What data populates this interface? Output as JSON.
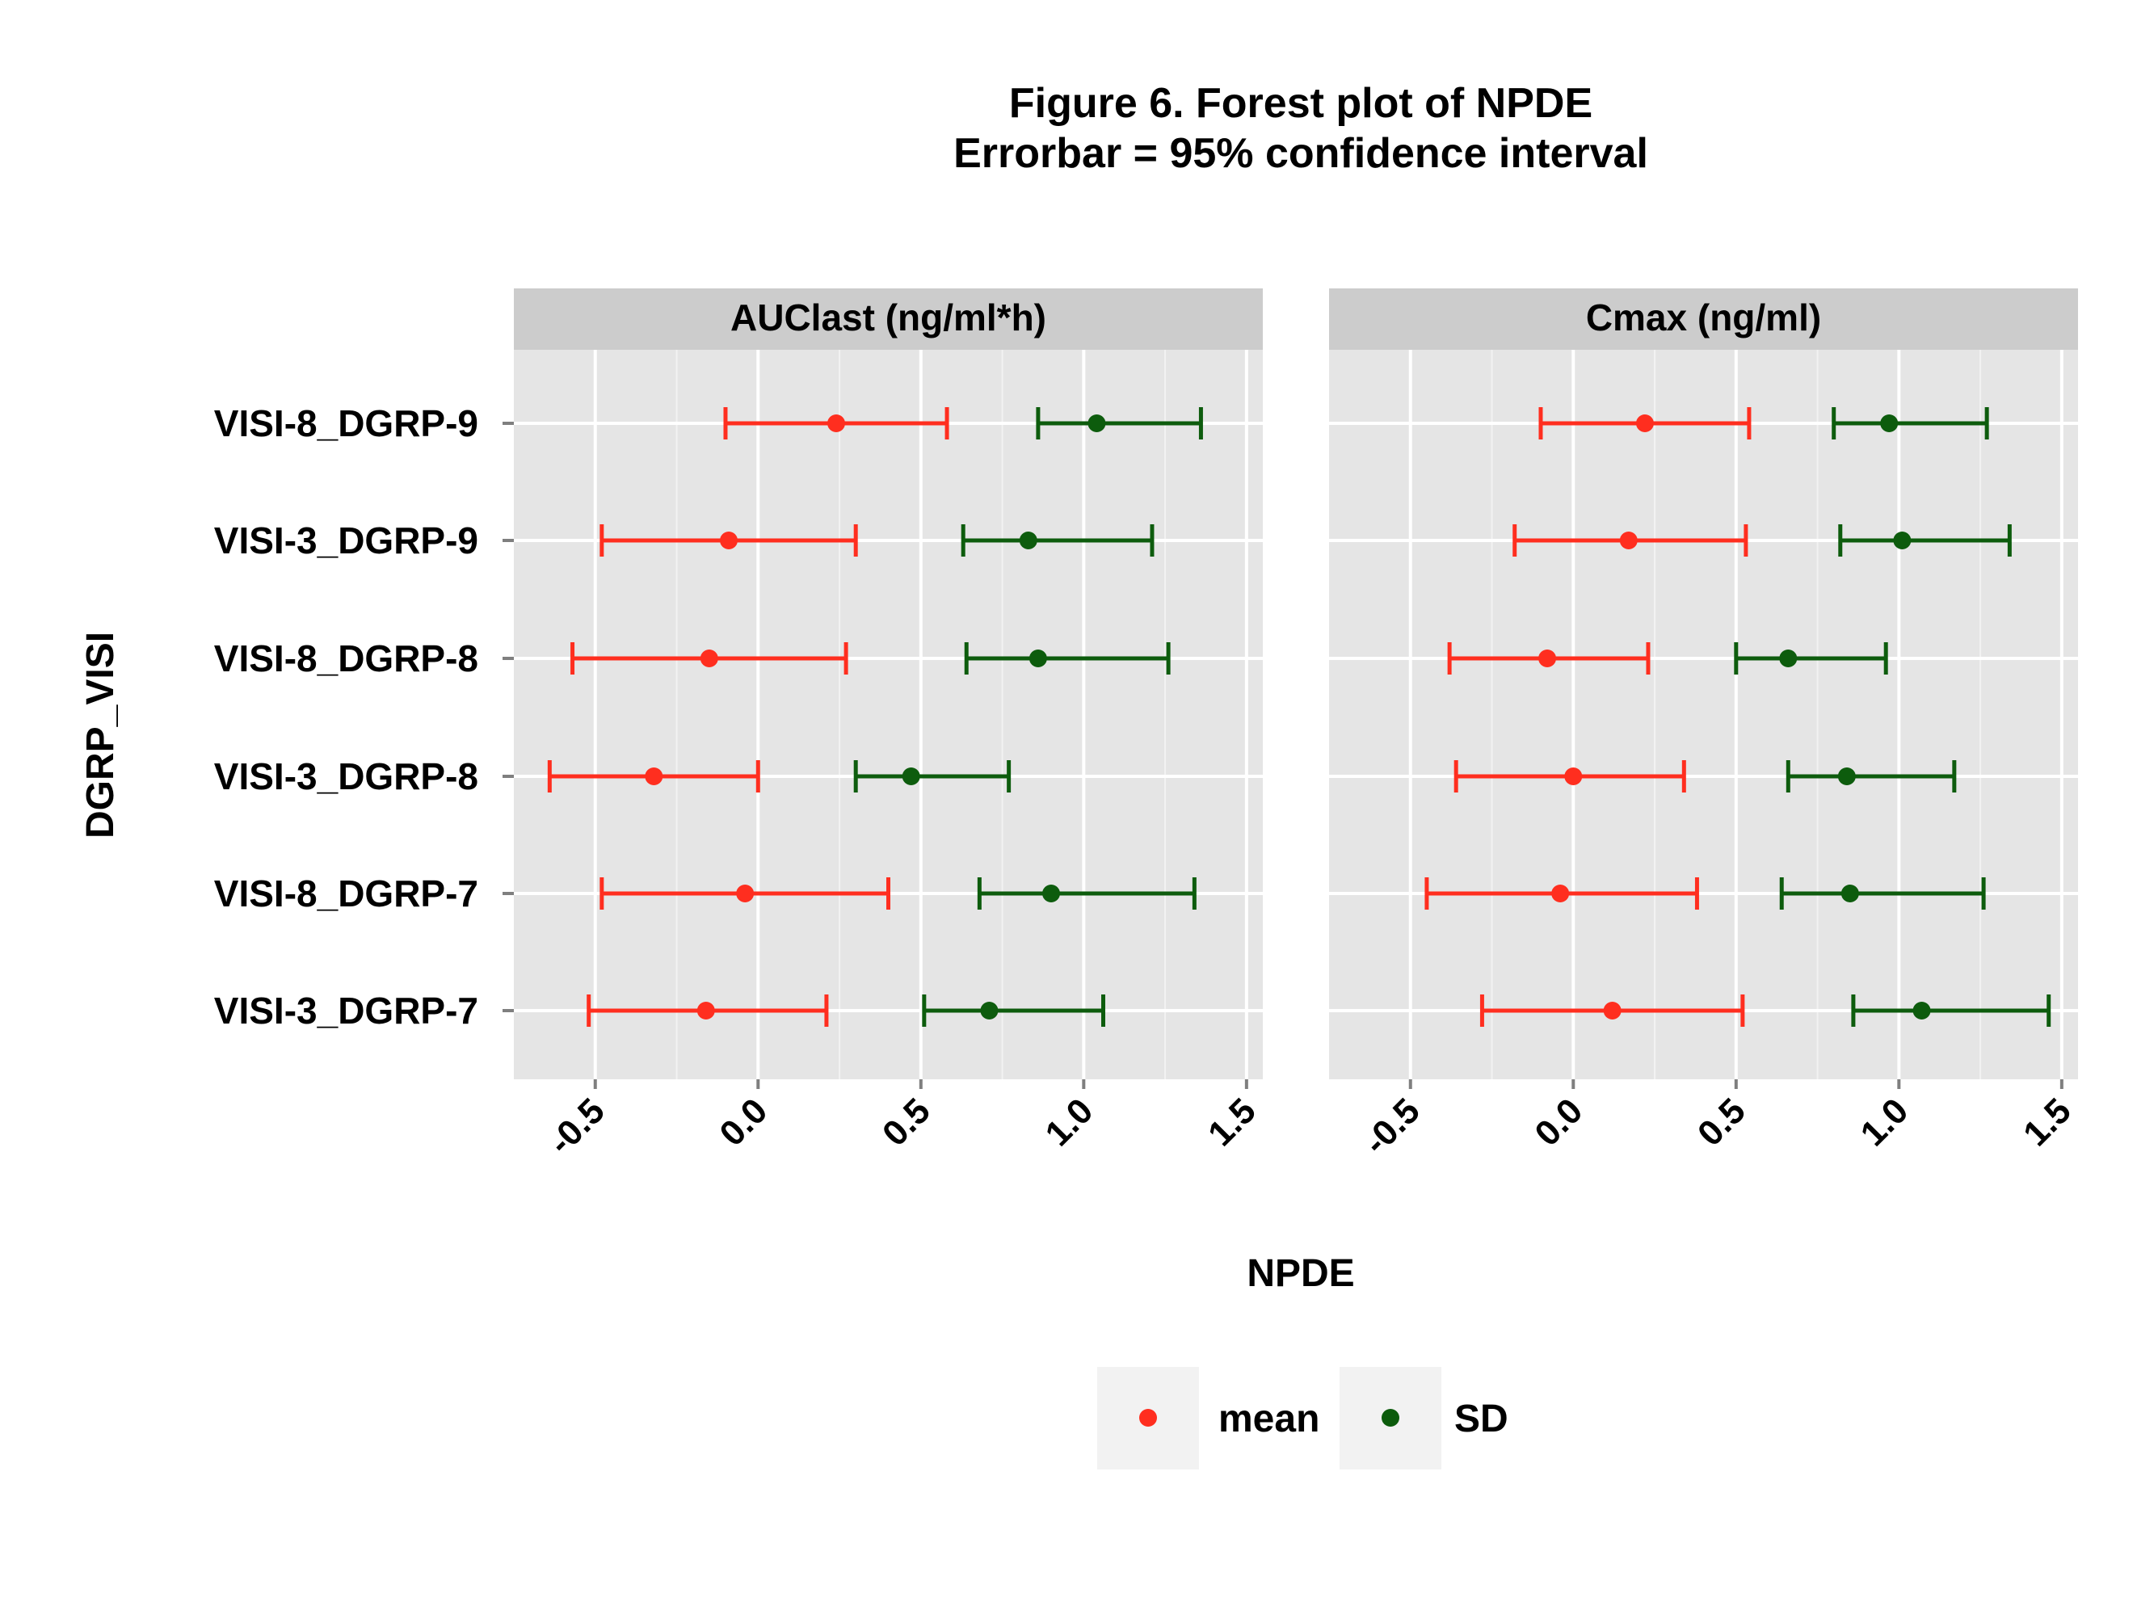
{
  "chart_data": {
    "type": "forest",
    "title": "Figure 6. Forest plot of NPDE",
    "subtitle": "Errorbar = 95% confidence interval",
    "xlabel": "NPDE",
    "ylabel": "DGRP_VISI",
    "xlim": [
      -0.75,
      1.55
    ],
    "xticks": [
      -0.5,
      0.0,
      0.5,
      1.0,
      1.5
    ],
    "xtick_labels": [
      "-0.5",
      "0.0",
      "0.5",
      "1.0",
      "1.5"
    ],
    "grid": true,
    "legend_position": "bottom",
    "categories": [
      "VISI-8_DGRP-9",
      "VISI-3_DGRP-9",
      "VISI-8_DGRP-8",
      "VISI-3_DGRP-8",
      "VISI-8_DGRP-7",
      "VISI-3_DGRP-7"
    ],
    "series": [
      {
        "name": "mean",
        "color": "#ff2e1f"
      },
      {
        "name": "SD",
        "color": "#0d5c0d"
      }
    ],
    "panels": [
      {
        "title": "AUClast (ng/ml*h)",
        "data": {
          "mean": [
            {
              "point": 0.24,
              "lower": -0.1,
              "upper": 0.58
            },
            {
              "point": -0.09,
              "lower": -0.48,
              "upper": 0.3
            },
            {
              "point": -0.15,
              "lower": -0.57,
              "upper": 0.27
            },
            {
              "point": -0.32,
              "lower": -0.64,
              "upper": 0.0
            },
            {
              "point": -0.04,
              "lower": -0.48,
              "upper": 0.4
            },
            {
              "point": -0.16,
              "lower": -0.52,
              "upper": 0.21
            }
          ],
          "SD": [
            {
              "point": 1.04,
              "lower": 0.86,
              "upper": 1.36
            },
            {
              "point": 0.83,
              "lower": 0.63,
              "upper": 1.21
            },
            {
              "point": 0.86,
              "lower": 0.64,
              "upper": 1.26
            },
            {
              "point": 0.47,
              "lower": 0.3,
              "upper": 0.77
            },
            {
              "point": 0.9,
              "lower": 0.68,
              "upper": 1.34
            },
            {
              "point": 0.71,
              "lower": 0.51,
              "upper": 1.06
            }
          ]
        }
      },
      {
        "title": "Cmax (ng/ml)",
        "data": {
          "mean": [
            {
              "point": 0.22,
              "lower": -0.1,
              "upper": 0.54
            },
            {
              "point": 0.17,
              "lower": -0.18,
              "upper": 0.53
            },
            {
              "point": -0.08,
              "lower": -0.38,
              "upper": 0.23
            },
            {
              "point": 0.0,
              "lower": -0.36,
              "upper": 0.34
            },
            {
              "point": -0.04,
              "lower": -0.45,
              "upper": 0.38
            },
            {
              "point": 0.12,
              "lower": -0.28,
              "upper": 0.52
            }
          ],
          "SD": [
            {
              "point": 0.97,
              "lower": 0.8,
              "upper": 1.27
            },
            {
              "point": 1.01,
              "lower": 0.82,
              "upper": 1.34
            },
            {
              "point": 0.66,
              "lower": 0.5,
              "upper": 0.96
            },
            {
              "point": 0.84,
              "lower": 0.66,
              "upper": 1.17
            },
            {
              "point": 0.85,
              "lower": 0.64,
              "upper": 1.26
            },
            {
              "point": 1.07,
              "lower": 0.86,
              "upper": 1.46
            }
          ]
        }
      }
    ]
  }
}
